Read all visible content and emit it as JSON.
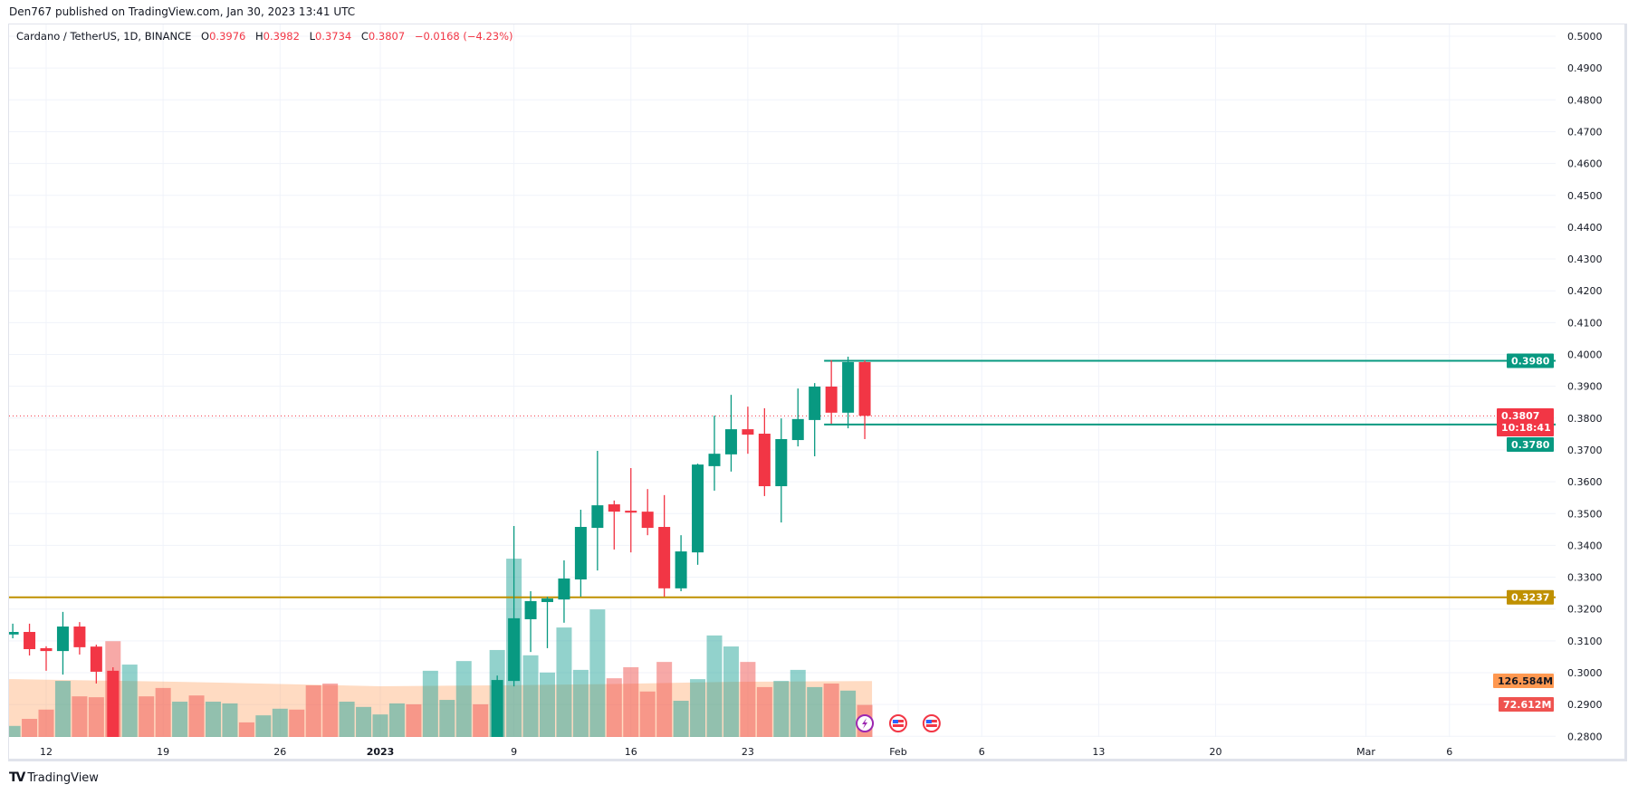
{
  "header": {
    "publisher_line": "Den767 published on TradingView.com, Jan 30, 2023 13:41 UTC"
  },
  "legend": {
    "symbol": "Cardano / TetherUS, 1D, BINANCE",
    "o_label": "O",
    "o": "0.3976",
    "h_label": "H",
    "h": "0.3982",
    "l_label": "L",
    "l": "0.3734",
    "c_label": "C",
    "c": "0.3807",
    "change": "−0.0168 (−4.23%)"
  },
  "footer": {
    "brand": "TradingView",
    "logo_mark": "TV"
  },
  "colors": {
    "up": "#089981",
    "down": "#f23645",
    "support": "#bf9000",
    "range": "#089981",
    "vol_up": "#26a69a",
    "vol_down": "#ef5350",
    "vol_ma": "#ff9850"
  },
  "chart_data": {
    "type": "candlestick",
    "title": "",
    "ylim": [
      0.28,
      0.5
    ],
    "y_ticks": [
      "0.5000",
      "0.4900",
      "0.4800",
      "0.4700",
      "0.4600",
      "0.4500",
      "0.4400",
      "0.4300",
      "0.4200",
      "0.4100",
      "0.4000",
      "0.3900",
      "0.3800",
      "0.3700",
      "0.3600",
      "0.3500",
      "0.3400",
      "0.3300",
      "0.3200",
      "0.3100",
      "0.3000",
      "0.2900",
      "0.2800"
    ],
    "x_ticks": [
      {
        "date": "2022-12-12",
        "label": "12"
      },
      {
        "date": "2022-12-19",
        "label": "19"
      },
      {
        "date": "2022-12-26",
        "label": "26"
      },
      {
        "date": "2023-01-01",
        "label": "2023"
      },
      {
        "date": "2023-01-09",
        "label": "9"
      },
      {
        "date": "2023-01-16",
        "label": "16"
      },
      {
        "date": "2023-01-23",
        "label": "23"
      },
      {
        "date": "2023-02-01",
        "label": "Feb"
      },
      {
        "date": "2023-02-06",
        "label": "6"
      },
      {
        "date": "2023-02-13",
        "label": "13"
      },
      {
        "date": "2023-02-20",
        "label": "20"
      },
      {
        "date": "2023-03-01",
        "label": "Mar"
      },
      {
        "date": "2023-03-06",
        "label": "6"
      }
    ],
    "grid": true,
    "candles": [
      {
        "date": "2022-12-10",
        "o": 0.312,
        "h": 0.3154,
        "l": 0.3108,
        "c": 0.3128
      },
      {
        "date": "2022-12-11",
        "o": 0.3128,
        "h": 0.3154,
        "l": 0.3054,
        "c": 0.3074
      },
      {
        "date": "2022-12-12",
        "o": 0.3077,
        "h": 0.3083,
        "l": 0.3006,
        "c": 0.3068
      },
      {
        "date": "2022-12-13",
        "o": 0.3068,
        "h": 0.3191,
        "l": 0.2994,
        "c": 0.3145
      },
      {
        "date": "2022-12-14",
        "o": 0.3145,
        "h": 0.3159,
        "l": 0.3057,
        "c": 0.308
      },
      {
        "date": "2022-12-15",
        "o": 0.3082,
        "h": 0.3088,
        "l": 0.2966,
        "c": 0.3003
      },
      {
        "date": "2022-12-16",
        "o": 0.3006,
        "h": 0.3017,
        "l": 0.276,
        "c": 0.278
      },
      {
        "date": "2023-01-08",
        "o": 0.278,
        "h": 0.2991,
        "l": 0.275,
        "c": 0.2977
      },
      {
        "date": "2023-01-09",
        "o": 0.2974,
        "h": 0.3461,
        "l": 0.2957,
        "c": 0.3171
      },
      {
        "date": "2023-01-10",
        "o": 0.3168,
        "h": 0.3256,
        "l": 0.3065,
        "c": 0.3225
      },
      {
        "date": "2023-01-11",
        "o": 0.3222,
        "h": 0.3239,
        "l": 0.3077,
        "c": 0.3233
      },
      {
        "date": "2023-01-12",
        "o": 0.323,
        "h": 0.3353,
        "l": 0.3157,
        "c": 0.3296
      },
      {
        "date": "2023-01-13",
        "o": 0.3293,
        "h": 0.3512,
        "l": 0.3239,
        "c": 0.3458
      },
      {
        "date": "2023-01-14",
        "o": 0.3455,
        "h": 0.3697,
        "l": 0.3321,
        "c": 0.3526
      },
      {
        "date": "2023-01-15",
        "o": 0.3529,
        "h": 0.3541,
        "l": 0.3387,
        "c": 0.3506
      },
      {
        "date": "2023-01-16",
        "o": 0.3509,
        "h": 0.3643,
        "l": 0.3378,
        "c": 0.3503
      },
      {
        "date": "2023-01-17",
        "o": 0.3506,
        "h": 0.3577,
        "l": 0.3432,
        "c": 0.3455
      },
      {
        "date": "2023-01-18",
        "o": 0.3458,
        "h": 0.3558,
        "l": 0.3239,
        "c": 0.3265
      },
      {
        "date": "2023-01-19",
        "o": 0.3265,
        "h": 0.3432,
        "l": 0.3256,
        "c": 0.3381
      },
      {
        "date": "2023-01-20",
        "o": 0.3378,
        "h": 0.3657,
        "l": 0.3339,
        "c": 0.3654
      },
      {
        "date": "2023-01-21",
        "o": 0.3649,
        "h": 0.3808,
        "l": 0.3572,
        "c": 0.3688
      },
      {
        "date": "2023-01-22",
        "o": 0.3686,
        "h": 0.3873,
        "l": 0.3632,
        "c": 0.3765
      },
      {
        "date": "2023-01-23",
        "o": 0.3765,
        "h": 0.3836,
        "l": 0.3688,
        "c": 0.3748
      },
      {
        "date": "2023-01-24",
        "o": 0.3751,
        "h": 0.3831,
        "l": 0.3555,
        "c": 0.3586
      },
      {
        "date": "2023-01-25",
        "o": 0.3586,
        "h": 0.3799,
        "l": 0.3472,
        "c": 0.3734
      },
      {
        "date": "2023-01-26",
        "o": 0.3731,
        "h": 0.3893,
        "l": 0.3711,
        "c": 0.3797
      },
      {
        "date": "2023-01-27",
        "o": 0.3794,
        "h": 0.391,
        "l": 0.368,
        "c": 0.3899
      },
      {
        "date": "2023-01-28",
        "o": 0.3899,
        "h": 0.3982,
        "l": 0.3782,
        "c": 0.3817
      },
      {
        "date": "2023-01-29",
        "o": 0.3817,
        "h": 0.3993,
        "l": 0.3768,
        "c": 0.3976
      },
      {
        "date": "2023-01-30",
        "o": 0.3976,
        "h": 0.3982,
        "l": 0.3734,
        "c": 0.3807
      }
    ],
    "volume_unit": "M",
    "volume": [
      {
        "date": "2022-12-10",
        "v": 25,
        "dir": "up"
      },
      {
        "date": "2022-12-11",
        "v": 41,
        "dir": "down"
      },
      {
        "date": "2022-12-12",
        "v": 62,
        "dir": "down"
      },
      {
        "date": "2022-12-13",
        "v": 127,
        "dir": "up"
      },
      {
        "date": "2022-12-14",
        "v": 92,
        "dir": "down"
      },
      {
        "date": "2022-12-15",
        "v": 90,
        "dir": "down"
      },
      {
        "date": "2022-12-16",
        "v": 217,
        "dir": "down"
      },
      {
        "date": "2022-12-17",
        "v": 164,
        "dir": "up"
      },
      {
        "date": "2022-12-18",
        "v": 92,
        "dir": "down"
      },
      {
        "date": "2022-12-19",
        "v": 111,
        "dir": "down"
      },
      {
        "date": "2022-12-20",
        "v": 80,
        "dir": "up"
      },
      {
        "date": "2022-12-21",
        "v": 94,
        "dir": "down"
      },
      {
        "date": "2022-12-22",
        "v": 80,
        "dir": "up"
      },
      {
        "date": "2022-12-23",
        "v": 76,
        "dir": "up"
      },
      {
        "date": "2022-12-24",
        "v": 33,
        "dir": "down"
      },
      {
        "date": "2022-12-25",
        "v": 49,
        "dir": "up"
      },
      {
        "date": "2022-12-26",
        "v": 64,
        "dir": "up"
      },
      {
        "date": "2022-12-27",
        "v": 62,
        "dir": "down"
      },
      {
        "date": "2022-12-28",
        "v": 117,
        "dir": "down"
      },
      {
        "date": "2022-12-29",
        "v": 121,
        "dir": "down"
      },
      {
        "date": "2022-12-30",
        "v": 80,
        "dir": "up"
      },
      {
        "date": "2022-12-31",
        "v": 68,
        "dir": "up"
      },
      {
        "date": "2023-01-01",
        "v": 51,
        "dir": "up"
      },
      {
        "date": "2023-01-02",
        "v": 76,
        "dir": "up"
      },
      {
        "date": "2023-01-03",
        "v": 74,
        "dir": "down"
      },
      {
        "date": "2023-01-04",
        "v": 150,
        "dir": "up"
      },
      {
        "date": "2023-01-05",
        "v": 84,
        "dir": "up"
      },
      {
        "date": "2023-01-06",
        "v": 172,
        "dir": "up"
      },
      {
        "date": "2023-01-07",
        "v": 74,
        "dir": "down"
      },
      {
        "date": "2023-01-08",
        "v": 197,
        "dir": "up"
      },
      {
        "date": "2023-01-09",
        "v": 404,
        "dir": "up"
      },
      {
        "date": "2023-01-10",
        "v": 185,
        "dir": "up"
      },
      {
        "date": "2023-01-11",
        "v": 146,
        "dir": "up"
      },
      {
        "date": "2023-01-12",
        "v": 248,
        "dir": "up"
      },
      {
        "date": "2023-01-13",
        "v": 152,
        "dir": "up"
      },
      {
        "date": "2023-01-14",
        "v": 289,
        "dir": "up"
      },
      {
        "date": "2023-01-15",
        "v": 133,
        "dir": "down"
      },
      {
        "date": "2023-01-16",
        "v": 158,
        "dir": "down"
      },
      {
        "date": "2023-01-17",
        "v": 103,
        "dir": "down"
      },
      {
        "date": "2023-01-18",
        "v": 170,
        "dir": "down"
      },
      {
        "date": "2023-01-19",
        "v": 82,
        "dir": "up"
      },
      {
        "date": "2023-01-20",
        "v": 131,
        "dir": "up"
      },
      {
        "date": "2023-01-21",
        "v": 230,
        "dir": "up"
      },
      {
        "date": "2023-01-22",
        "v": 205,
        "dir": "up"
      },
      {
        "date": "2023-01-23",
        "v": 170,
        "dir": "down"
      },
      {
        "date": "2023-01-24",
        "v": 113,
        "dir": "down"
      },
      {
        "date": "2023-01-25",
        "v": 127,
        "dir": "up"
      },
      {
        "date": "2023-01-26",
        "v": 152,
        "dir": "up"
      },
      {
        "date": "2023-01-27",
        "v": 113,
        "dir": "up"
      },
      {
        "date": "2023-01-28",
        "v": 121,
        "dir": "down"
      },
      {
        "date": "2023-01-29",
        "v": 105,
        "dir": "up"
      },
      {
        "date": "2023-01-30",
        "v": 72.612,
        "dir": "down"
      }
    ],
    "volume_ma": [
      {
        "date": "2022-12-10",
        "v": 131
      },
      {
        "date": "2022-12-20",
        "v": 125
      },
      {
        "date": "2023-01-01",
        "v": 115
      },
      {
        "date": "2023-01-08",
        "v": 117
      },
      {
        "date": "2023-01-15",
        "v": 120
      },
      {
        "date": "2023-01-22",
        "v": 125
      },
      {
        "date": "2023-01-30",
        "v": 126.584
      }
    ],
    "lines": [
      {
        "kind": "horizontal",
        "price": 0.3237,
        "label": "0.3237",
        "color": "support"
      },
      {
        "kind": "range",
        "price": 0.398,
        "from": "2023-01-28",
        "label": "0.3980",
        "color": "range"
      },
      {
        "kind": "range",
        "price": 0.378,
        "from": "2023-01-28",
        "label": "0.3780",
        "color": "range"
      }
    ],
    "last_price": {
      "label": "0.3807",
      "countdown": "10:18:41",
      "price": 0.3807
    },
    "volume_labels": {
      "ma": "126.584M",
      "last": "72.612M"
    },
    "events": [
      {
        "date": "2023-01-30",
        "icon": "lightning-icon"
      },
      {
        "date": "2023-02-01",
        "icon": "us-flag-icon"
      },
      {
        "date": "2023-02-03",
        "icon": "us-flag-icon"
      }
    ]
  }
}
